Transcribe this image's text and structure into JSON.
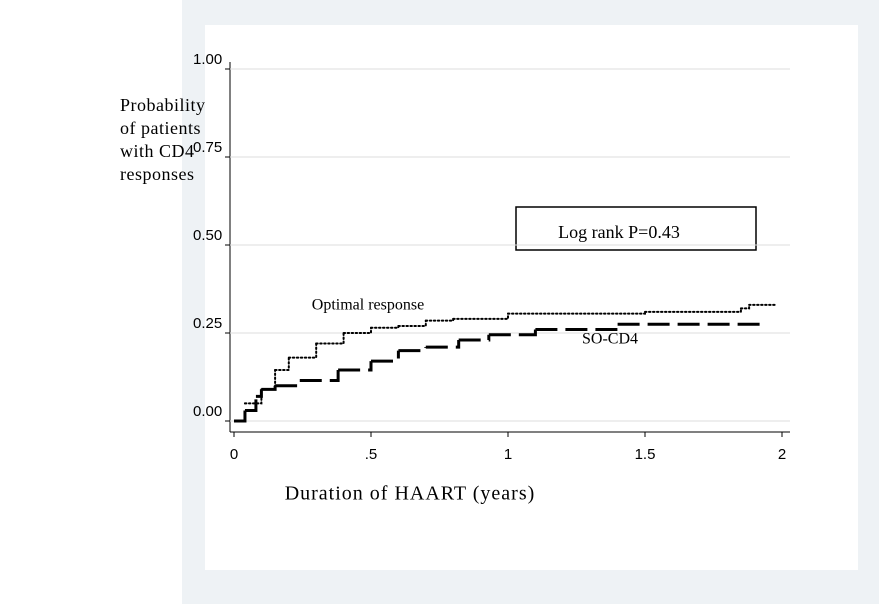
{
  "chart_data": {
    "type": "step",
    "ylabel": [
      "Probability",
      "of patients",
      "with CD4",
      "responses"
    ],
    "xlabel": "Duration of HAART (years)",
    "annotation": "Log rank P=0.43",
    "xlim": [
      0,
      2
    ],
    "xticks": [
      0,
      {
        "value": 0.5,
        "label": ".5"
      },
      1,
      1.5,
      2
    ],
    "ylim": [
      0,
      1
    ],
    "yticks": [
      {
        "value": 0,
        "label": "0.00"
      },
      {
        "value": 0.25,
        "label": "0.25"
      },
      {
        "value": 0.5,
        "label": "0.50"
      },
      {
        "value": 0.75,
        "label": "0.75"
      },
      {
        "value": 1,
        "label": "1.00"
      }
    ],
    "grid": true,
    "series": [
      {
        "name": "Optimal response",
        "color": "#000000",
        "style": "dotted",
        "x": [
          0.04,
          0.1,
          0.15,
          0.2,
          0.3,
          0.4,
          0.5,
          0.6,
          0.7,
          0.8,
          1.0,
          1.5,
          1.85,
          1.88,
          1.98
        ],
        "values": [
          0.05,
          0.09,
          0.145,
          0.18,
          0.22,
          0.25,
          0.265,
          0.27,
          0.285,
          0.29,
          0.305,
          0.31,
          0.32,
          0.33,
          0.33
        ]
      },
      {
        "name": "SO-CD4",
        "color": "#000000",
        "style": "dashed",
        "x": [
          0,
          0.04,
          0.08,
          0.1,
          0.15,
          0.24,
          0.38,
          0.5,
          0.6,
          0.7,
          0.82,
          0.93,
          1.1,
          1.4,
          1.93
        ],
        "values": [
          0,
          0.03,
          0.07,
          0.09,
          0.1,
          0.115,
          0.145,
          0.17,
          0.2,
          0.21,
          0.23,
          0.245,
          0.26,
          0.275,
          0.275
        ]
      }
    ]
  }
}
